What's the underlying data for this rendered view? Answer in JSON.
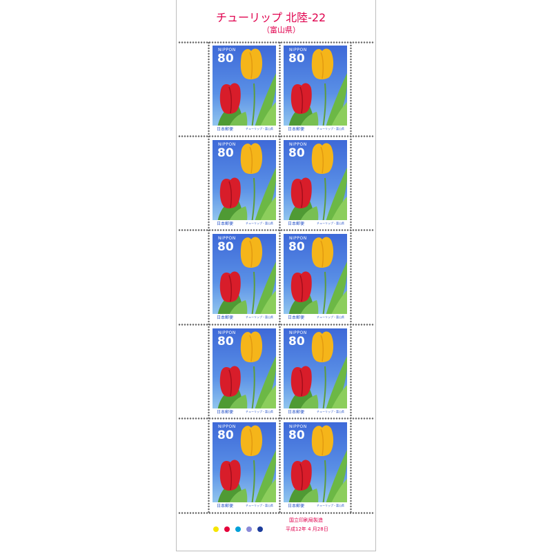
{
  "sheet": {
    "title": "チューリップ  北陸-22",
    "subtitle": "（富山県）",
    "printer": "国立印刷局製造",
    "date": "平成12年 4 月28日"
  },
  "stamp": {
    "nippon": "NIPPON",
    "value": "80",
    "post": "日本郵便",
    "caption": "チューリップ・富山県"
  },
  "colors": {
    "title": "#e0004d",
    "sky": "#4b7ee0",
    "red_tulip": "#d81d2a",
    "yellow_tulip": "#f4b81c",
    "leaf": "#5aa63a"
  },
  "registration_dots": [
    "#f6e500",
    "#e5003a",
    "#00a0d8",
    "#8a8ad8",
    "#1c3c9c"
  ]
}
